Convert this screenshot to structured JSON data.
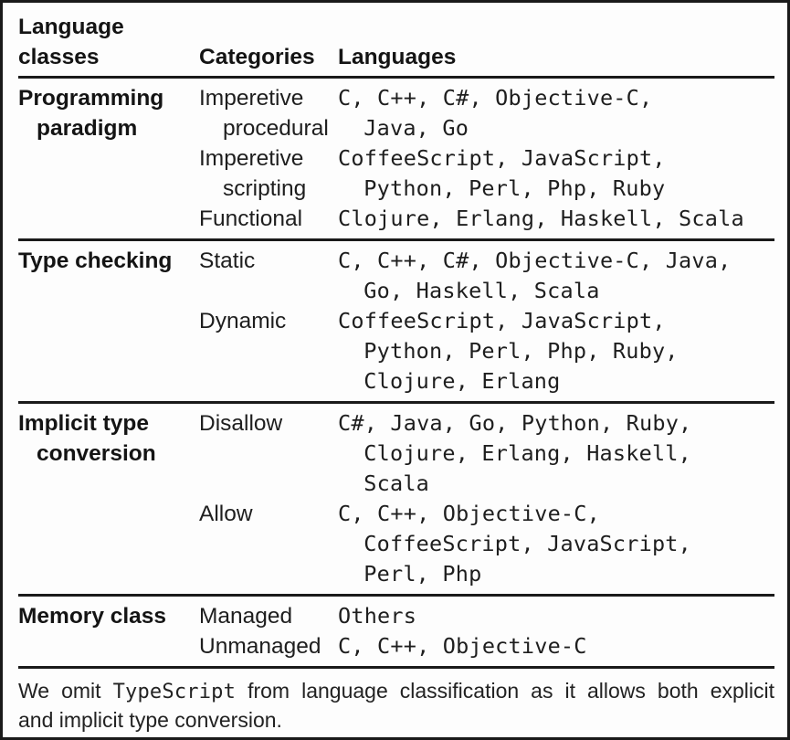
{
  "colors": {
    "ink": "#1e1e1e",
    "rule": "#1a1a1a",
    "background": "#fdfdfd"
  },
  "header": {
    "class_col": [
      "Language",
      "classes"
    ],
    "categories": "Categories",
    "languages": "Languages"
  },
  "sections": [
    {
      "class_lines": [
        "Programming",
        "paradigm"
      ],
      "entries": [
        {
          "category": [
            "Imperetive",
            "procedural"
          ],
          "languages": [
            "C, C++, C#, Objective-C,",
            "Java, Go"
          ]
        },
        {
          "category": [
            "Imperetive",
            "scripting"
          ],
          "languages": [
            "CoffeeScript, JavaScript,",
            "Python, Perl, Php, Ruby"
          ]
        },
        {
          "category": [
            "Functional"
          ],
          "languages": [
            "Clojure, Erlang, Haskell, Scala"
          ]
        }
      ]
    },
    {
      "class_lines": [
        "Type checking"
      ],
      "entries": [
        {
          "category": [
            "Static"
          ],
          "languages": [
            "C, C++, C#, Objective-C, Java,",
            "Go, Haskell, Scala"
          ]
        },
        {
          "category": [
            "Dynamic"
          ],
          "languages": [
            "CoffeeScript, JavaScript,",
            "Python, Perl, Php, Ruby,",
            "Clojure, Erlang"
          ]
        }
      ]
    },
    {
      "class_lines": [
        "Implicit type",
        "conversion"
      ],
      "entries": [
        {
          "category": [
            "Disallow"
          ],
          "languages": [
            "C#, Java, Go, Python, Ruby,",
            "Clojure, Erlang, Haskell,",
            "Scala"
          ]
        },
        {
          "category": [
            "Allow"
          ],
          "languages": [
            "C, C++, Objective-C,",
            "CoffeeScript, JavaScript,",
            "Perl, Php"
          ]
        }
      ]
    },
    {
      "class_lines": [
        "Memory class"
      ],
      "entries": [
        {
          "category": [
            "Managed"
          ],
          "languages": [
            "Others"
          ]
        },
        {
          "category": [
            "Unmanaged"
          ],
          "languages": [
            "C, C++, Objective-C"
          ]
        }
      ]
    }
  ],
  "footnote": {
    "pre": "We omit",
    "code": "TypeScript",
    "post": "from language classification as it allows both explicit",
    "line2": "and implicit type conversion."
  }
}
